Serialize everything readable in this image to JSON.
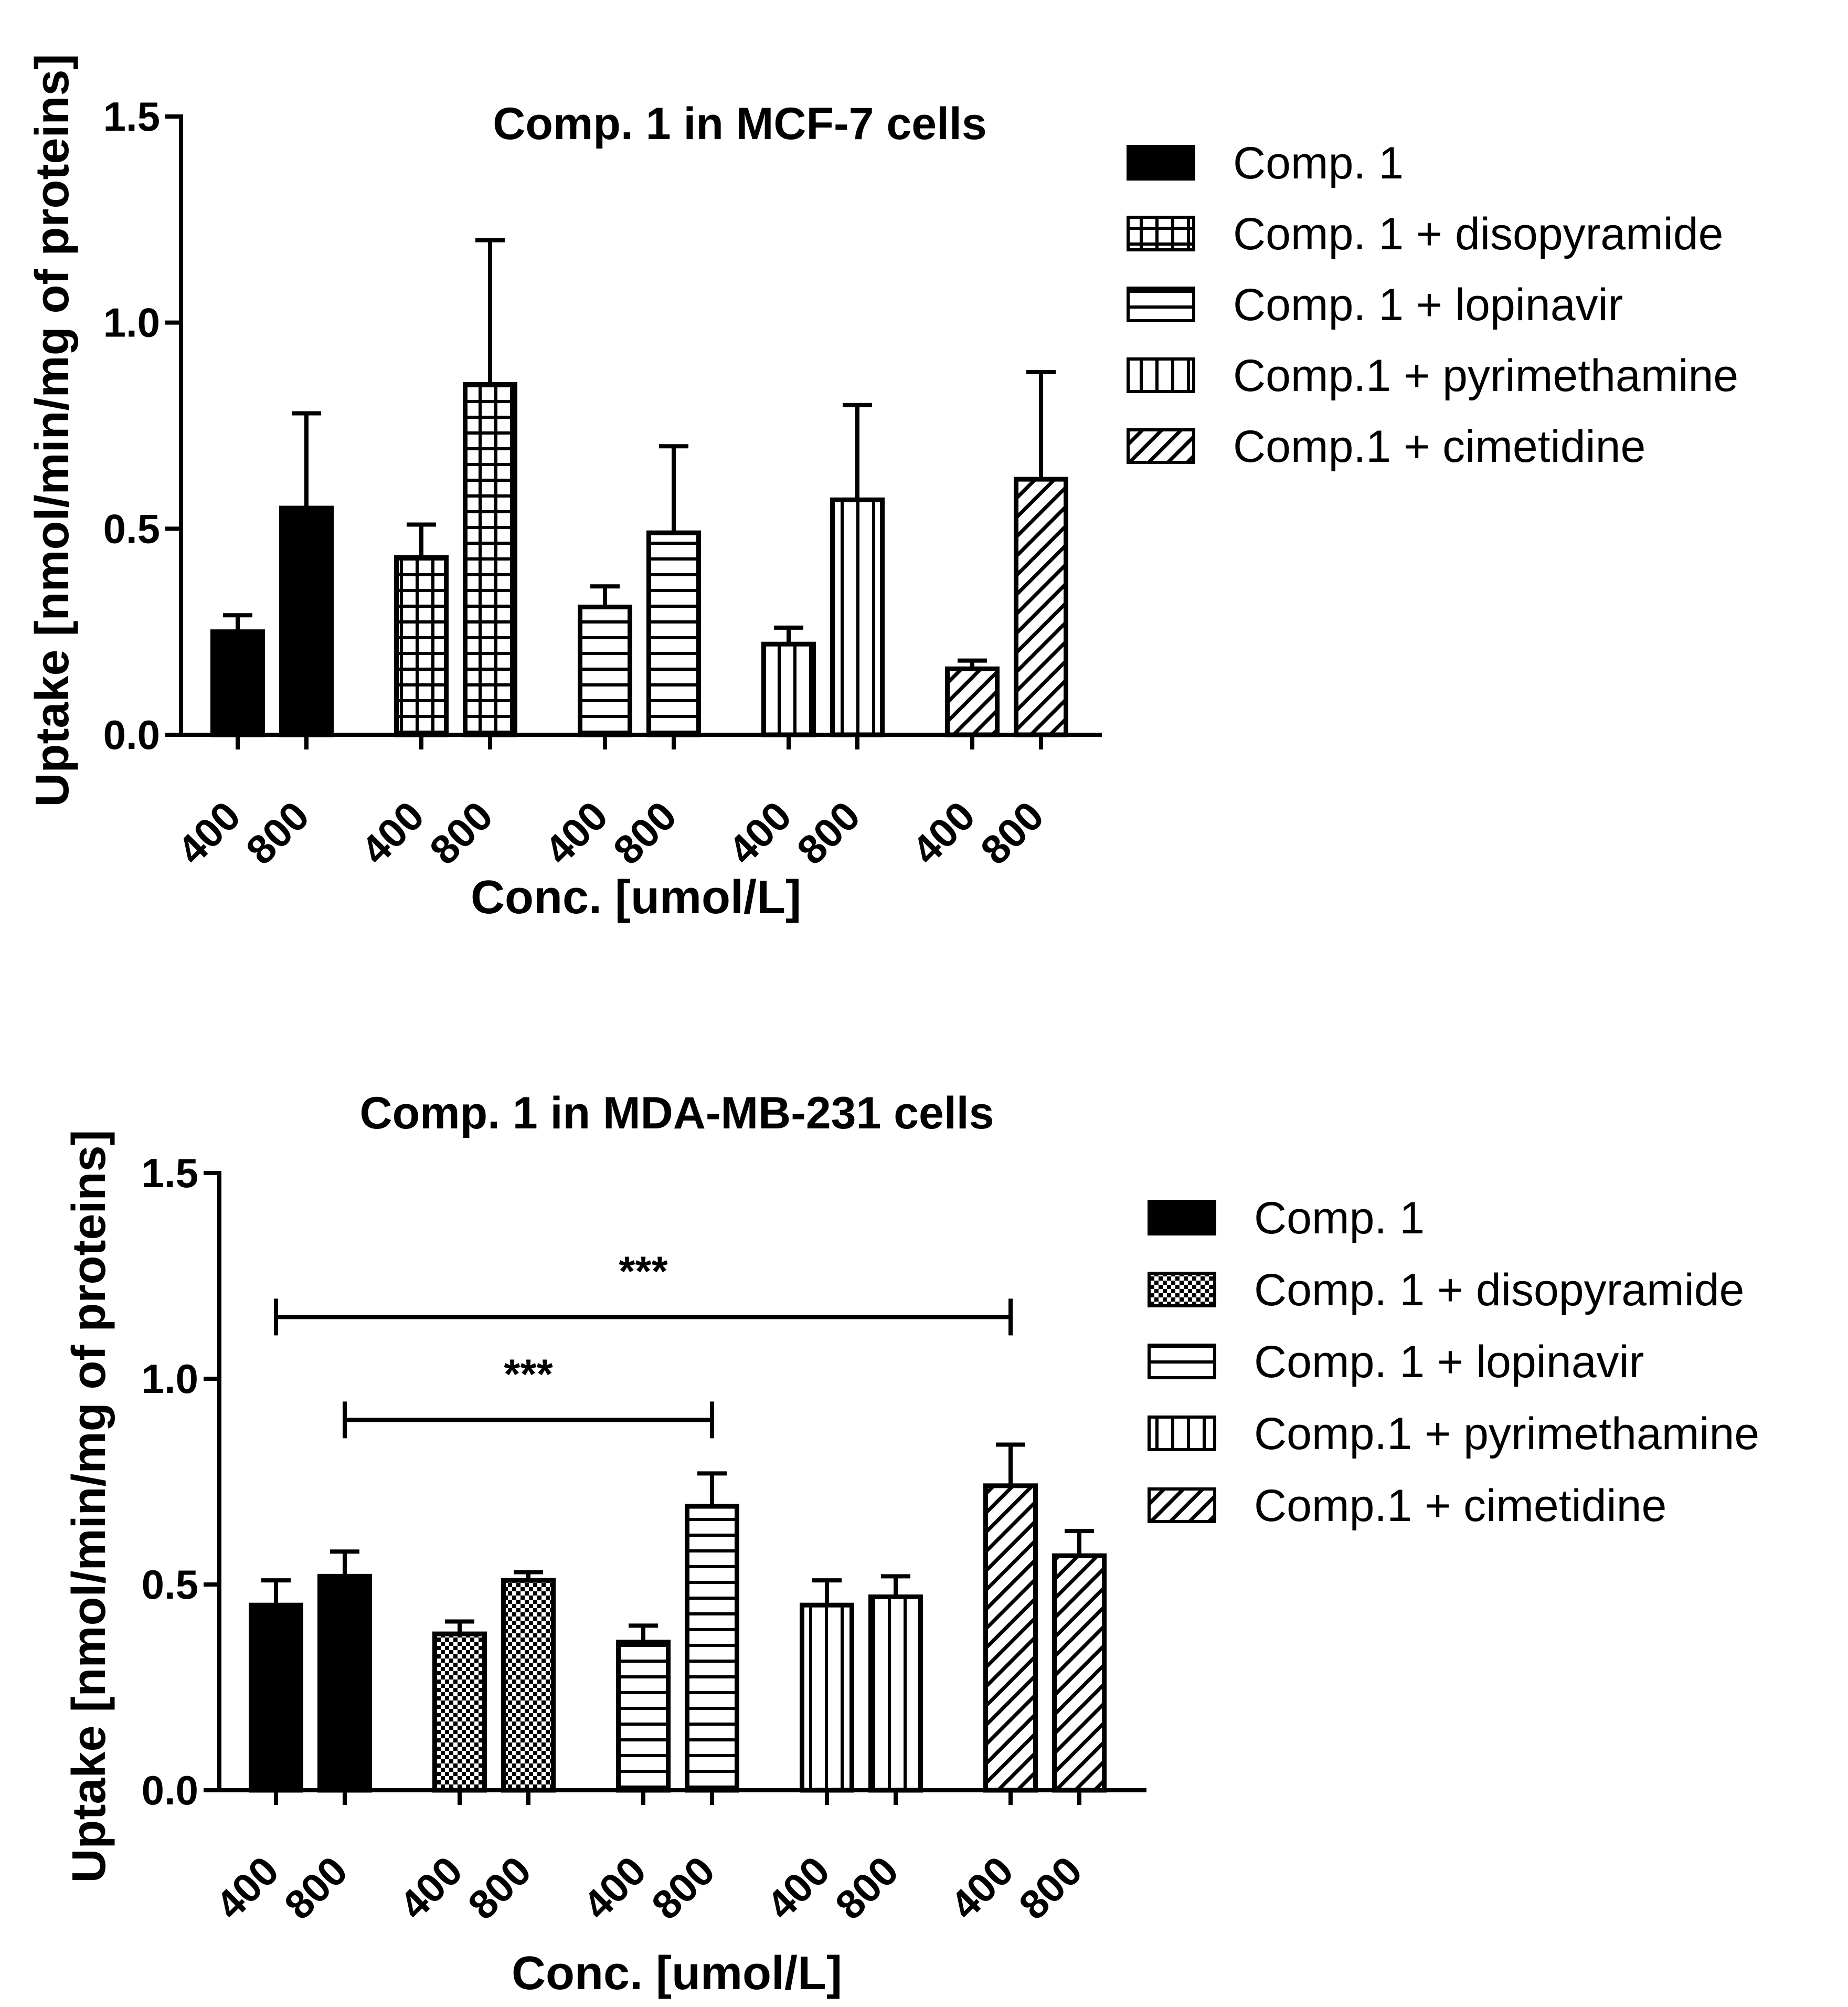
{
  "colors": {
    "ink": "#000000",
    "background": "#ffffff"
  },
  "chart_data": [
    {
      "type": "bar",
      "title": "Comp. 1 in MCF-7 cells",
      "xlabel": "Conc. [umol/L]",
      "ylabel": "Uptake [nmol/min/mg of proteins]",
      "ylim": [
        0,
        1.5
      ],
      "yticks": [
        "0.0",
        "0.5",
        "1.0",
        "1.5"
      ],
      "categories": [
        "400",
        "800"
      ],
      "legend_position": "right",
      "series": [
        {
          "name": "Comp. 1",
          "pattern": "solid",
          "values": [
            0.25,
            0.55
          ],
          "errors": [
            0.04,
            0.23
          ]
        },
        {
          "name": "Comp. 1 + disopyramide",
          "pattern": "grid",
          "values": [
            0.43,
            0.85
          ],
          "errors": [
            0.08,
            0.35
          ]
        },
        {
          "name": "Comp. 1 + lopinavir",
          "pattern": "horizontal",
          "values": [
            0.31,
            0.49
          ],
          "errors": [
            0.05,
            0.21
          ]
        },
        {
          "name": "Comp.1 + pyrimethamine",
          "pattern": "vertical",
          "values": [
            0.22,
            0.57
          ],
          "errors": [
            0.04,
            0.23
          ]
        },
        {
          "name": "Comp.1 + cimetidine",
          "pattern": "diagonal",
          "values": [
            0.16,
            0.62
          ],
          "errors": [
            0.02,
            0.26
          ]
        }
      ],
      "annotations": []
    },
    {
      "type": "bar",
      "title": "Comp. 1 in MDA-MB-231 cells",
      "xlabel": "Conc. [umol/L]",
      "ylabel": "Uptake [nmol/min/mg of proteins]",
      "ylim": [
        0,
        1.5
      ],
      "yticks": [
        "0.0",
        "0.5",
        "1.0",
        "1.5"
      ],
      "categories": [
        "400",
        "800"
      ],
      "legend_position": "right",
      "series": [
        {
          "name": "Comp. 1",
          "pattern": "solid",
          "values": [
            0.45,
            0.52
          ],
          "errors": [
            0.06,
            0.06
          ]
        },
        {
          "name": "Comp. 1 + disopyramide",
          "pattern": "checker",
          "values": [
            0.38,
            0.51
          ],
          "errors": [
            0.03,
            0.02
          ]
        },
        {
          "name": "Comp. 1 + lopinavir",
          "pattern": "horizontal",
          "values": [
            0.36,
            0.69
          ],
          "errors": [
            0.04,
            0.08
          ]
        },
        {
          "name": "Comp.1 + pyrimethamine",
          "pattern": "vertical",
          "values": [
            0.45,
            0.47
          ],
          "errors": [
            0.06,
            0.05
          ]
        },
        {
          "name": "Comp.1 + cimetidine",
          "pattern": "diagonal",
          "values": [
            0.74,
            0.57
          ],
          "errors": [
            0.1,
            0.06
          ]
        }
      ],
      "annotations": [
        {
          "text": "***",
          "from": [
            0,
            0
          ],
          "to": [
            4,
            0
          ],
          "y": 1.15
        },
        {
          "text": "***",
          "from": [
            0,
            1
          ],
          "to": [
            2,
            1
          ],
          "y": 0.9
        }
      ]
    }
  ]
}
